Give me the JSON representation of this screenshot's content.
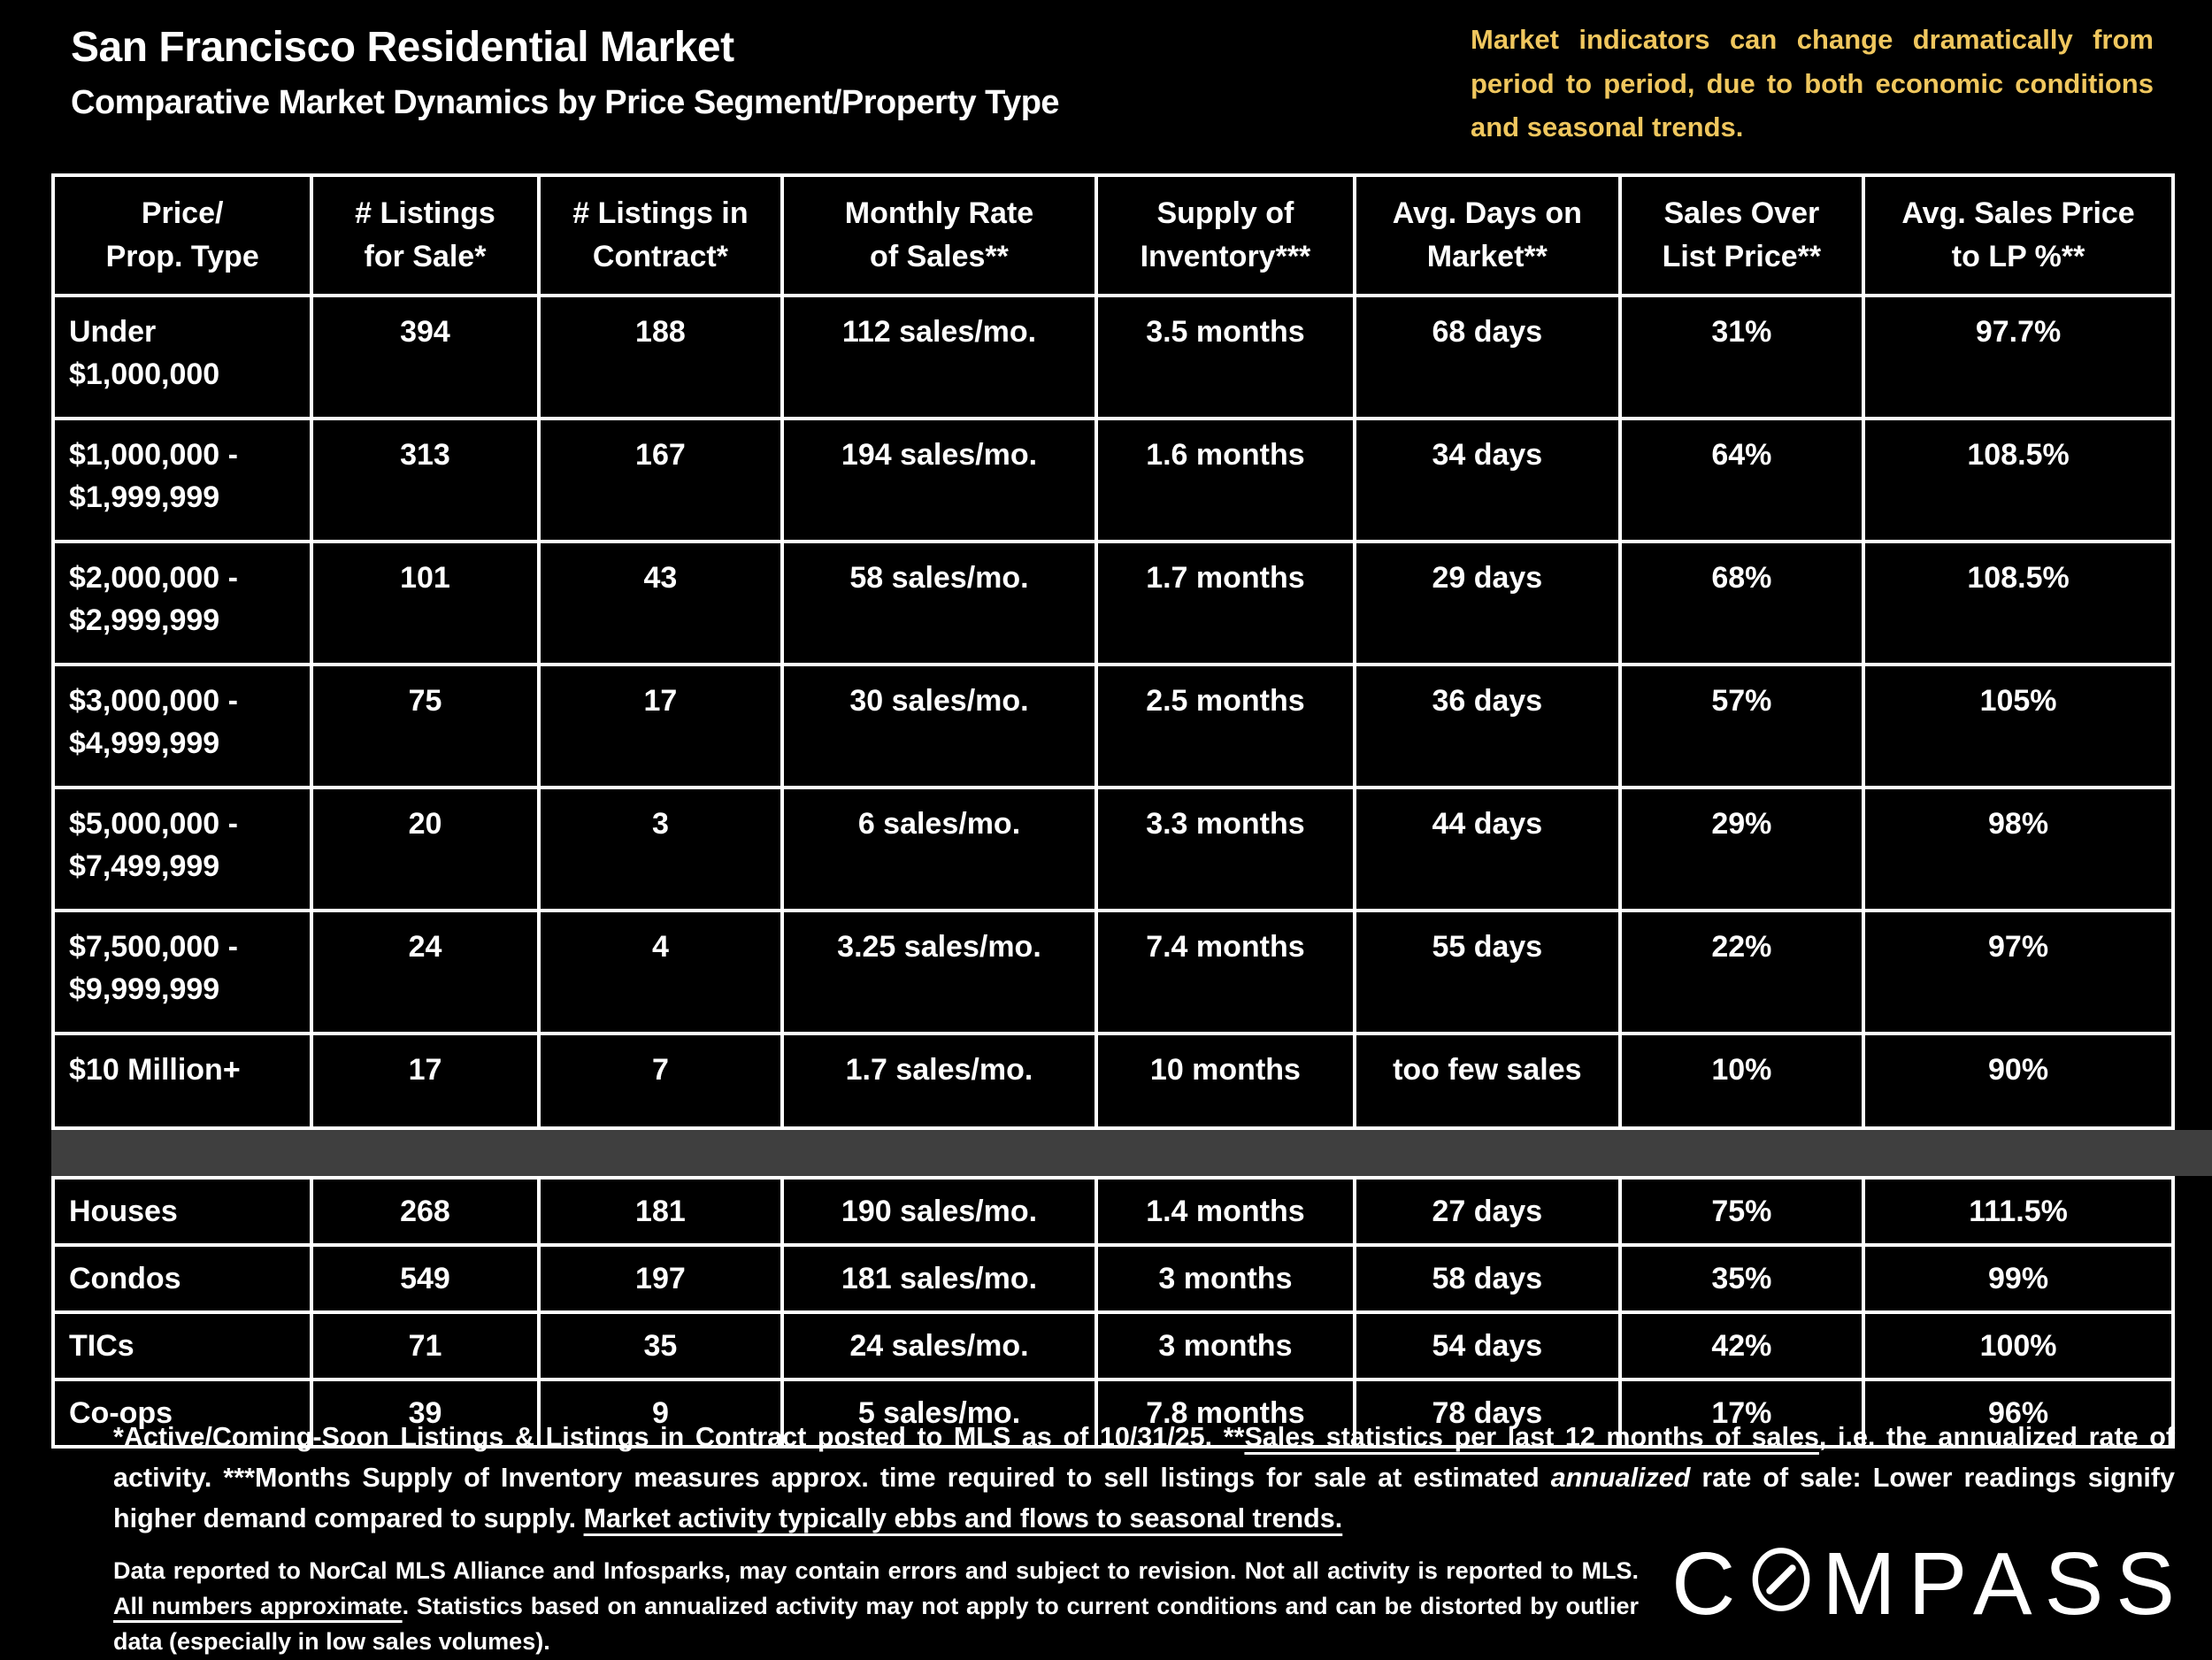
{
  "slide": {
    "title": "San Francisco Residential Market",
    "subtitle": "Comparative Market Dynamics by Price Segment/Property Type",
    "market_note": "Market indicators can change dramatically from period to period, due to both economic conditions and seasonal trends."
  },
  "chart_data": {
    "type": "table",
    "title": "San Francisco Residential Market",
    "subtitle": "Comparative Market Dynamics by Price Segment/Property Type",
    "columns": [
      {
        "lines": [
          "Price/",
          "Prop. Type"
        ]
      },
      {
        "lines": [
          "# Listings",
          "for Sale*"
        ]
      },
      {
        "lines": [
          "# Listings in",
          "Contract*"
        ]
      },
      {
        "lines": [
          "Monthly Rate",
          "of Sales**"
        ]
      },
      {
        "lines": [
          "Supply of",
          "Inventory***"
        ]
      },
      {
        "lines": [
          "Avg. Days on",
          "Market**"
        ]
      },
      {
        "lines": [
          "Sales Over",
          "List Price**"
        ]
      },
      {
        "lines": [
          "Avg. Sales Price",
          "to LP %**"
        ]
      }
    ],
    "price_segment_rows": [
      {
        "label_lines": [
          "Under",
          "$1,000,000"
        ],
        "values": [
          "394",
          "188",
          "112 sales/mo.",
          "3.5 months",
          "68 days",
          "31%",
          "97.7%"
        ]
      },
      {
        "label_lines": [
          "$1,000,000 -",
          "$1,999,999"
        ],
        "values": [
          "313",
          "167",
          "194 sales/mo.",
          "1.6 months",
          "34 days",
          "64%",
          "108.5%"
        ]
      },
      {
        "label_lines": [
          "$2,000,000 -",
          "$2,999,999"
        ],
        "values": [
          "101",
          "43",
          "58 sales/mo.",
          "1.7 months",
          "29 days",
          "68%",
          "108.5%"
        ]
      },
      {
        "label_lines": [
          "$3,000,000 -",
          "$4,999,999"
        ],
        "values": [
          "75",
          "17",
          "30 sales/mo.",
          "2.5 months",
          "36 days",
          "57%",
          "105%"
        ]
      },
      {
        "label_lines": [
          "$5,000,000 -",
          "$7,499,999"
        ],
        "values": [
          "20",
          "3",
          "6 sales/mo.",
          "3.3 months",
          "44 days",
          "29%",
          "98%"
        ]
      },
      {
        "label_lines": [
          "$7,500,000 -",
          "$9,999,999"
        ],
        "values": [
          "24",
          "4",
          "3.25 sales/mo.",
          "7.4 months",
          "55 days",
          "22%",
          "97%"
        ]
      },
      {
        "label_lines": [
          "$10 Million+"
        ],
        "values": [
          "17",
          "7",
          "1.7 sales/mo.",
          "10 months",
          "too few sales",
          "10%",
          "90%"
        ]
      }
    ],
    "property_type_rows": [
      {
        "label_lines": [
          "Houses"
        ],
        "values": [
          "268",
          "181",
          "190 sales/mo.",
          "1.4 months",
          "27 days",
          "75%",
          "111.5%"
        ]
      },
      {
        "label_lines": [
          "Condos"
        ],
        "values": [
          "549",
          "197",
          "181 sales/mo.",
          "3 months",
          "58 days",
          "35%",
          "99%"
        ]
      },
      {
        "label_lines": [
          "TICs"
        ],
        "values": [
          "71",
          "35",
          "24 sales/mo.",
          "3 months",
          "54 days",
          "42%",
          "100%"
        ]
      },
      {
        "label_lines": [
          "Co-ops"
        ],
        "values": [
          "39",
          "9",
          "5 sales/mo.",
          "7.8 months",
          "78 days",
          "17%",
          "96%"
        ]
      }
    ]
  },
  "footnotes": {
    "para1": [
      {
        "text": "*Active/Coming-Soon Listings & Listings in Contract posted to MLS as of 10/31/25.  **"
      },
      {
        "text": "Sales statistics per last 12 months of sales",
        "u": true
      },
      {
        "text": ", i.e. the annualized rate of activity.  ***Months Supply of Inventory measures approx. time required to sell listings for sale at estimated "
      },
      {
        "text": "annualized",
        "i": true
      },
      {
        "text": " rate of sale:  Lower readings signify higher demand compared to supply. "
      },
      {
        "text": "Market activity typically ebbs and flows to seasonal trends.",
        "u": true
      }
    ],
    "para2": [
      {
        "text": "Data reported to NorCal MLS Alliance and Infosparks, may contain errors and subject to revision.  Not all activity is reported to MLS. "
      },
      {
        "text": "All numbers approximate",
        "u": true
      },
      {
        "text": ".  Statistics based on annualized activity may not apply to current conditions and can be distorted by outlier data (especially in low sales volumes)."
      }
    ]
  },
  "brand": {
    "wordmark": "COMPASS",
    "part1": "C",
    "part2": "MPASS"
  },
  "colors": {
    "accent_yellow": "#F0C75E",
    "separator_gray": "#3F3F3F",
    "background": "#000000",
    "text": "#FFFFFF",
    "border": "#FFFFFF"
  }
}
